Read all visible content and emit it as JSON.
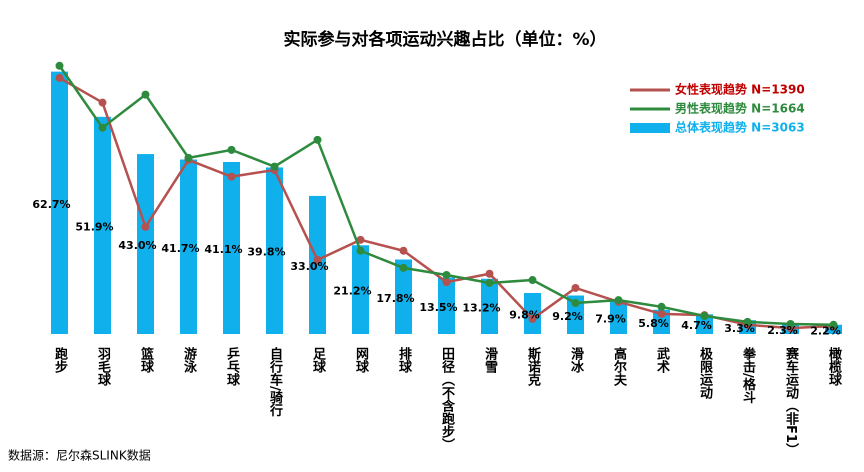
{
  "chart_data": {
    "type": "bar_line",
    "title": "实际参与对各项运动兴趣占比（单位：%）",
    "categories": [
      "跑步",
      "羽毛球",
      "篮球",
      "游泳",
      "乒乓球",
      "自行车/骑行",
      "足球",
      "网球",
      "排球",
      "田径（不含跑步）",
      "滑雪",
      "斯诺克",
      "滑冰",
      "高尔夫",
      "武术",
      "极限运动",
      "拳击/格斗",
      "赛车运动（非F1）",
      "橄榄球"
    ],
    "ylim": [
      0,
      65
    ],
    "series": [
      {
        "name": "女性表现趋势 N=1390",
        "type": "line",
        "color": "#b5514f",
        "label_color": "#c00000",
        "values": [
          61.2,
          55.3,
          25.6,
          41.6,
          37.6,
          39.2,
          17.7,
          22.5,
          19.9,
          12.4,
          14.4,
          3.6,
          11.0,
          7.7,
          4.8,
          4.5,
          2.2,
          1.4,
          1.9
        ]
      },
      {
        "name": "男性表现趋势 N=1664",
        "type": "line",
        "color": "#2e8b3e",
        "label_color": "#2e8b3e",
        "values": [
          64.1,
          49.3,
          57.2,
          42.1,
          44.0,
          40.0,
          46.4,
          19.9,
          15.8,
          14.1,
          12.2,
          12.9,
          7.4,
          8.1,
          6.5,
          4.3,
          2.9,
          2.4,
          2.2
        ]
      },
      {
        "name": "总体表现趋势 N=3063",
        "type": "bar",
        "color": "#0fb0ec",
        "label_color": "#0fb0ec",
        "values": [
          62.7,
          51.9,
          43.0,
          41.7,
          41.1,
          39.8,
          33.0,
          21.2,
          17.8,
          13.5,
          13.2,
          9.8,
          9.2,
          7.9,
          5.8,
          4.7,
          3.3,
          2.3,
          2.2
        ],
        "value_labels": [
          "62.7%",
          "51.9%",
          "43.0%",
          "41.7%",
          "41.1%",
          "39.8%",
          "33.0%",
          "21.2%",
          "17.8%",
          "13.5%",
          "13.2%",
          "9.8%",
          "9.2%",
          "7.9%",
          "5.8%",
          "4.7%",
          "3.3%",
          "2.3%",
          "2.2%"
        ]
      }
    ],
    "source": "数据源：尼尔森SLINK数据"
  }
}
